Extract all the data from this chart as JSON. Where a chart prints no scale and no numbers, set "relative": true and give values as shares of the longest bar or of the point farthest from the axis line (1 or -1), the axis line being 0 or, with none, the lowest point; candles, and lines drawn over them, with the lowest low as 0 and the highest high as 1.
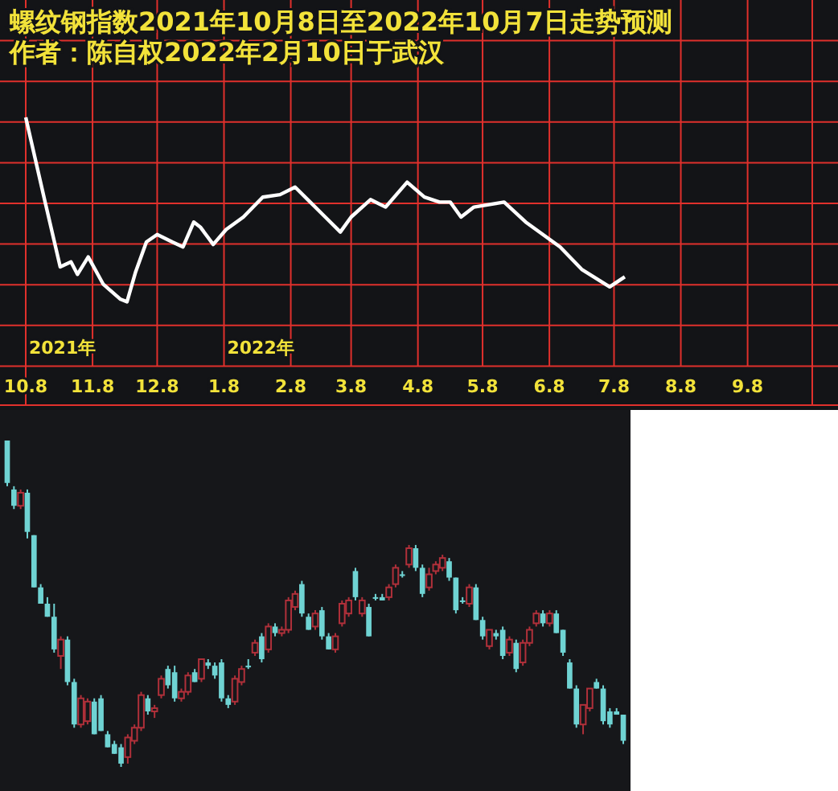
{
  "chart_data": [
    {
      "type": "line",
      "title": "螺纹钢指数2021年10月8日至2022年10月7日走势预测",
      "subtitle": "作者：陈自权2022年2月10日于武汉",
      "relative": true,
      "grid": true,
      "marker": "none",
      "line_style": "solid",
      "x": [
        "2021-10-08",
        "2021-10-17",
        "2021-10-24",
        "2021-10-29",
        "2021-11-01",
        "2021-11-06",
        "2021-11-13",
        "2021-11-21",
        "2021-11-24",
        "2021-11-28",
        "2021-12-03",
        "2021-12-08",
        "2021-12-15",
        "2021-12-20",
        "2021-12-25",
        "2021-12-28",
        "2022-01-03",
        "2022-01-09",
        "2022-01-17",
        "2022-01-26",
        "2022-02-03",
        "2022-02-10",
        "2022-02-17",
        "2022-02-24",
        "2022-03-03",
        "2022-03-08",
        "2022-03-17",
        "2022-03-24",
        "2022-04-03",
        "2022-04-11",
        "2022-04-18",
        "2022-04-23",
        "2022-04-28",
        "2022-05-04",
        "2022-05-18",
        "2022-05-28",
        "2022-06-13",
        "2022-06-23",
        "2022-07-06",
        "2022-07-13"
      ],
      "series": [
        {
          "color": "#ffffff",
          "values": [
            1.0,
            0.66,
            0.4,
            0.42,
            0.37,
            0.44,
            0.33,
            0.27,
            0.26,
            0.38,
            0.5,
            0.53,
            0.5,
            0.48,
            0.58,
            0.56,
            0.49,
            0.55,
            0.6,
            0.68,
            0.69,
            0.72,
            0.66,
            0.6,
            0.54,
            0.6,
            0.67,
            0.64,
            0.74,
            0.68,
            0.66,
            0.66,
            0.6,
            0.64,
            0.66,
            0.58,
            0.48,
            0.39,
            0.32,
            0.36
          ]
        }
      ],
      "xlim": [
        "2021-10-08",
        "2022-10-08"
      ],
      "xticks": [
        {
          "value": "2021-10-08",
          "label": "10.8"
        },
        {
          "value": "2021-11-08",
          "label": "11.8"
        },
        {
          "value": "2021-12-08",
          "label": "12.8"
        },
        {
          "value": "2022-01-08",
          "label": "1.8"
        },
        {
          "value": "2022-02-08",
          "label": "2.8"
        },
        {
          "value": "2022-03-08",
          "label": "3.8"
        },
        {
          "value": "2022-04-08",
          "label": "4.8"
        },
        {
          "value": "2022-05-08",
          "label": "5.8"
        },
        {
          "value": "2022-06-08",
          "label": "6.8"
        },
        {
          "value": "2022-07-08",
          "label": "7.8"
        },
        {
          "value": "2022-08-08",
          "label": "8.8"
        },
        {
          "value": "2022-09-08",
          "label": "9.8"
        }
      ],
      "annotations": [
        "2021年",
        "2022年"
      ]
    },
    {
      "type": "candlestick",
      "relative": true,
      "categories": [
        null,
        null,
        null,
        null,
        null,
        null,
        null,
        null,
        null,
        null,
        null,
        null,
        null,
        null,
        null,
        null,
        null,
        null,
        null,
        null,
        null,
        null,
        null,
        null,
        null,
        null,
        null,
        null,
        null,
        null,
        null,
        null,
        null,
        null,
        null,
        null,
        null,
        null,
        null,
        null,
        null,
        null,
        null,
        null,
        null,
        null,
        null,
        null,
        null,
        null,
        null,
        null,
        null,
        null,
        null,
        null,
        null,
        null,
        null,
        null,
        null,
        null,
        null,
        null,
        null,
        null,
        null,
        null,
        null,
        null,
        null,
        null,
        null,
        null,
        null,
        null,
        null,
        null,
        null,
        null,
        null,
        null,
        null,
        null,
        null,
        null,
        null,
        null,
        null,
        null,
        null,
        null,
        null
      ],
      "ohlc": [
        [
          1.0,
          1.0,
          0.86,
          0.87
        ],
        [
          0.85,
          0.86,
          0.79,
          0.8
        ],
        [
          0.8,
          0.85,
          0.79,
          0.84
        ],
        [
          0.84,
          0.85,
          0.7,
          0.72
        ],
        [
          0.71,
          0.71,
          0.55,
          0.55
        ],
        [
          0.55,
          0.56,
          0.5,
          0.5
        ],
        [
          0.5,
          0.52,
          0.46,
          0.46
        ],
        [
          0.46,
          0.5,
          0.35,
          0.36
        ],
        [
          0.34,
          0.4,
          0.3,
          0.39
        ],
        [
          0.39,
          0.4,
          0.25,
          0.26
        ],
        [
          0.26,
          0.27,
          0.12,
          0.13
        ],
        [
          0.13,
          0.22,
          0.12,
          0.21
        ],
        [
          0.14,
          0.21,
          0.13,
          0.2
        ],
        [
          0.2,
          0.21,
          0.1,
          0.1
        ],
        [
          0.21,
          0.22,
          0.11,
          0.11
        ],
        [
          0.1,
          0.11,
          0.06,
          0.06
        ],
        [
          0.07,
          0.08,
          0.04,
          0.04
        ],
        [
          0.06,
          0.07,
          0,
          0.01
        ],
        [
          0.03,
          0.1,
          0.01,
          0.09
        ],
        [
          0.08,
          0.13,
          0.07,
          0.12
        ],
        [
          0.12,
          0.23,
          0.11,
          0.22
        ],
        [
          0.21,
          0.22,
          0.16,
          0.17
        ],
        [
          0.17,
          0.19,
          0.15,
          0.18
        ],
        [
          0.22,
          0.28,
          0.21,
          0.27
        ],
        [
          0.3,
          0.31,
          0.24,
          0.25
        ],
        [
          0.29,
          0.31,
          0.2,
          0.21
        ],
        [
          0.21,
          0.24,
          0.2,
          0.23
        ],
        [
          0.23,
          0.29,
          0.22,
          0.28
        ],
        [
          0.29,
          0.3,
          0.26,
          0.26
        ],
        [
          0.27,
          0.33,
          0.26,
          0.33
        ],
        [
          0.32,
          0.33,
          0.3,
          0.31
        ],
        [
          0.31,
          0.32,
          0.27,
          0.28
        ],
        [
          0.32,
          0.33,
          0.2,
          0.21
        ],
        [
          0.21,
          0.22,
          0.18,
          0.19
        ],
        [
          0.2,
          0.28,
          0.19,
          0.27
        ],
        [
          0.26,
          0.31,
          0.25,
          0.3
        ],
        [
          0.31,
          0.33,
          0.3,
          0.31
        ],
        [
          0.35,
          0.39,
          0.34,
          0.38
        ],
        [
          0.4,
          0.41,
          0.32,
          0.33
        ],
        [
          0.36,
          0.44,
          0.35,
          0.43
        ],
        [
          0.43,
          0.44,
          0.4,
          0.41
        ],
        [
          0.41,
          0.43,
          0.4,
          0.42
        ],
        [
          0.42,
          0.52,
          0.41,
          0.51
        ],
        [
          0.49,
          0.54,
          0.48,
          0.53
        ],
        [
          0.56,
          0.57,
          0.46,
          0.47
        ],
        [
          0.46,
          0.47,
          0.42,
          0.42
        ],
        [
          0.43,
          0.48,
          0.42,
          0.47
        ],
        [
          0.48,
          0.49,
          0.39,
          0.4
        ],
        [
          0.4,
          0.41,
          0.36,
          0.36
        ],
        [
          0.36,
          0.41,
          0.35,
          0.4
        ],
        [
          0.44,
          0.51,
          0.43,
          0.5
        ],
        [
          0.47,
          0.52,
          0.46,
          0.51
        ],
        [
          0.6,
          0.61,
          0.51,
          0.52
        ],
        [
          0.47,
          0.52,
          0.46,
          0.51
        ],
        [
          0.49,
          0.5,
          0.4,
          0.4
        ],
        [
          0.52,
          0.53,
          0.51,
          0.52
        ],
        [
          0.52,
          0.53,
          0.51,
          0.51
        ],
        [
          0.52,
          0.56,
          0.51,
          0.55
        ],
        [
          0.56,
          0.62,
          0.55,
          0.61
        ],
        [
          0.59,
          0.6,
          0.58,
          0.59
        ],
        [
          0.62,
          0.68,
          0.61,
          0.67
        ],
        [
          0.67,
          0.68,
          0.6,
          0.61
        ],
        [
          0.61,
          0.62,
          0.52,
          0.53
        ],
        [
          0.55,
          0.61,
          0.54,
          0.59
        ],
        [
          0.6,
          0.63,
          0.59,
          0.62
        ],
        [
          0.61,
          0.65,
          0.6,
          0.64
        ],
        [
          0.63,
          0.64,
          0.57,
          0.58
        ],
        [
          0.58,
          0.58,
          0.47,
          0.48
        ],
        [
          0.51,
          0.52,
          0.5,
          0.51
        ],
        [
          0.5,
          0.56,
          0.49,
          0.55
        ],
        [
          0.55,
          0.56,
          0.45,
          0.45
        ],
        [
          0.45,
          0.46,
          0.39,
          0.4
        ],
        [
          0.37,
          0.42,
          0.36,
          0.42
        ],
        [
          0.41,
          0.42,
          0.39,
          0.4
        ],
        [
          0.42,
          0.43,
          0.33,
          0.34
        ],
        [
          0.35,
          0.4,
          0.34,
          0.39
        ],
        [
          0.38,
          0.39,
          0.29,
          0.3
        ],
        [
          0.32,
          0.39,
          0.31,
          0.38
        ],
        [
          0.38,
          0.43,
          0.37,
          0.42
        ],
        [
          0.44,
          0.48,
          0.43,
          0.47
        ],
        [
          0.47,
          0.48,
          0.43,
          0.44
        ],
        [
          0.44,
          0.48,
          0.43,
          0.47
        ],
        [
          0.47,
          0.48,
          0.41,
          0.41
        ],
        [
          0.42,
          0.42,
          0.34,
          0.35
        ],
        [
          0.32,
          0.33,
          0.24,
          0.24
        ],
        [
          0.24,
          0.25,
          0.12,
          0.13
        ],
        [
          0.13,
          0.19,
          0.1,
          0.19
        ],
        [
          0.18,
          0.24,
          0.17,
          0.24
        ],
        [
          0.26,
          0.27,
          0.24,
          0.24
        ],
        [
          0.24,
          0.25,
          0.13,
          0.14
        ],
        [
          0.17,
          0.18,
          0.12,
          0.13
        ],
        [
          0.17,
          0.18,
          0.16,
          0.16
        ],
        [
          0.16,
          0.16,
          0.07,
          0.08
        ]
      ],
      "colors": [
        "#6fd3d3",
        "#6fd3d3",
        "#b0303a",
        "#6fd3d3",
        "#6fd3d3",
        "#6fd3d3",
        "#6fd3d3",
        "#6fd3d3",
        "#b0303a",
        "#6fd3d3",
        "#6fd3d3",
        "#b0303a",
        "#b0303a",
        "#6fd3d3",
        "#6fd3d3",
        "#6fd3d3",
        "#6fd3d3",
        "#6fd3d3",
        "#b0303a",
        "#b0303a",
        "#b0303a",
        "#6fd3d3",
        "#b0303a",
        "#b0303a",
        "#6fd3d3",
        "#6fd3d3",
        "#b0303a",
        "#b0303a",
        "#6fd3d3",
        "#b0303a",
        "#6fd3d3",
        "#6fd3d3",
        "#6fd3d3",
        "#6fd3d3",
        "#b0303a",
        "#b0303a",
        "#6fd3d3",
        "#b0303a",
        "#6fd3d3",
        "#b0303a",
        "#6fd3d3",
        "#b0303a",
        "#b0303a",
        "#b0303a",
        "#6fd3d3",
        "#6fd3d3",
        "#b0303a",
        "#6fd3d3",
        "#6fd3d3",
        "#b0303a",
        "#b0303a",
        "#b0303a",
        "#6fd3d3",
        "#b0303a",
        "#6fd3d3",
        "#6fd3d3",
        "#6fd3d3",
        "#b0303a",
        "#b0303a",
        "#6fd3d3",
        "#b0303a",
        "#6fd3d3",
        "#6fd3d3",
        "#b0303a",
        "#b0303a",
        "#b0303a",
        "#6fd3d3",
        "#6fd3d3",
        "#6fd3d3",
        "#b0303a",
        "#6fd3d3",
        "#6fd3d3",
        "#b0303a",
        "#6fd3d3",
        "#6fd3d3",
        "#b0303a",
        "#6fd3d3",
        "#b0303a",
        "#b0303a",
        "#b0303a",
        "#6fd3d3",
        "#b0303a",
        "#6fd3d3",
        "#6fd3d3",
        "#6fd3d3",
        "#6fd3d3",
        "#b0303a",
        "#b0303a",
        "#6fd3d3",
        "#6fd3d3",
        "#6fd3d3",
        "#6fd3d3",
        "#6fd3d3"
      ]
    }
  ]
}
